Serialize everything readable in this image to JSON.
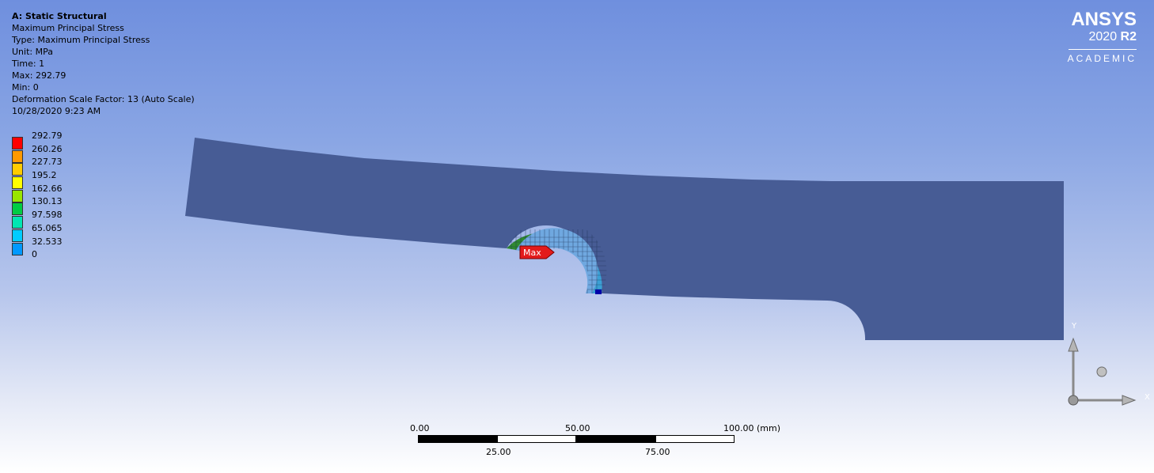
{
  "result_info": {
    "analysis_title": "A: Static Structural",
    "lines": [
      "Maximum Principal Stress",
      "Type: Maximum Principal Stress",
      "Unit: MPa",
      "Time: 1",
      "Max: 292.79",
      "Min: 0",
      "Deformation Scale Factor: 13 (Auto Scale)",
      "10/28/2020 9:23 AM"
    ]
  },
  "legend": {
    "values": [
      "292.79",
      "260.26",
      "227.73",
      "195.2",
      "162.66",
      "130.13",
      "97.598",
      "65.065",
      "32.533",
      "0"
    ],
    "colors": [
      "#ff0000",
      "#ff9900",
      "#ffcc00",
      "#ffff00",
      "#99e600",
      "#00cc44",
      "#00e6b3",
      "#00ccff",
      "#0099ff",
      "#0000ff"
    ]
  },
  "brand": {
    "name": "ANSYS",
    "version_year": "2020",
    "version_release": "R2",
    "edition": "ACADEMIC"
  },
  "probe": {
    "max_label": "Max"
  },
  "scale_bar": {
    "top_labels": [
      "0.00",
      "50.00",
      "100.00 (mm)"
    ],
    "bottom_labels": [
      "25.00",
      "75.00"
    ]
  },
  "triad": {
    "x_label": "X",
    "y_label": "Y"
  },
  "colors": {
    "body_fill": "#475c95",
    "background_top": "#6f8fde",
    "background_bottom": "#ffffff"
  }
}
